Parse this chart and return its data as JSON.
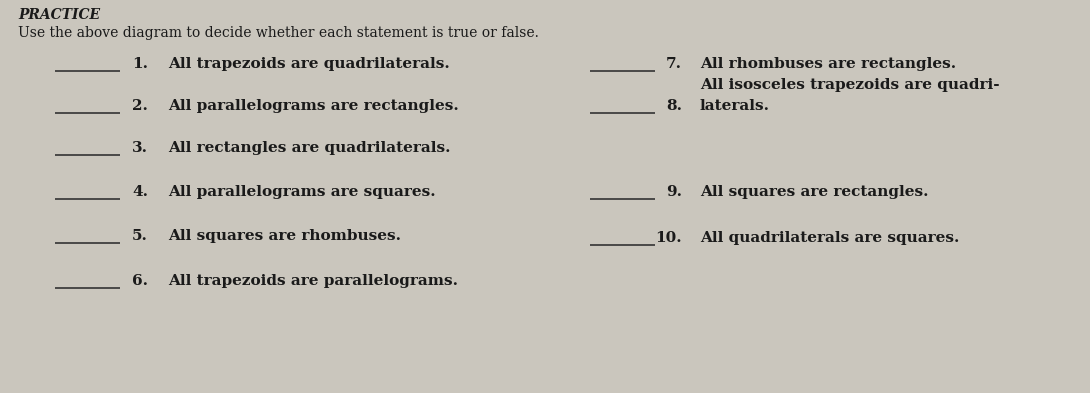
{
  "background_color": "#cac6bd",
  "title": "PRACTICE",
  "subtitle": "Use the above diagram to decide whether each statement is true or false.",
  "title_fontsize": 10,
  "subtitle_fontsize": 10,
  "items_fontsize": 11,
  "left_items": [
    {
      "num": "1.",
      "text": "All trapezoids are quadrilaterals."
    },
    {
      "num": "2.",
      "text": "All parallelograms are rectangles."
    },
    {
      "num": "3.",
      "text": "All rectangles are quadrilaterals."
    },
    {
      "num": "4.",
      "text": "All parallelograms are squares."
    },
    {
      "num": "5.",
      "text": "All squares are rhombuses."
    },
    {
      "num": "6.",
      "text": "All trapezoids are parallelograms."
    }
  ],
  "right_items": [
    {
      "num": "7.",
      "text": "All rhombuses are rectangles.",
      "lines": 1
    },
    {
      "num": "8.",
      "text": "All isosceles trapezoids are quadri-\nlaterals.",
      "lines": 2
    },
    {
      "num": "9.",
      "text": "All squares are rectangles.",
      "lines": 1
    },
    {
      "num": "10.",
      "text": "All quadrilaterals are squares.",
      "lines": 1
    }
  ],
  "text_color": "#1a1a1a",
  "line_color": "#333333"
}
